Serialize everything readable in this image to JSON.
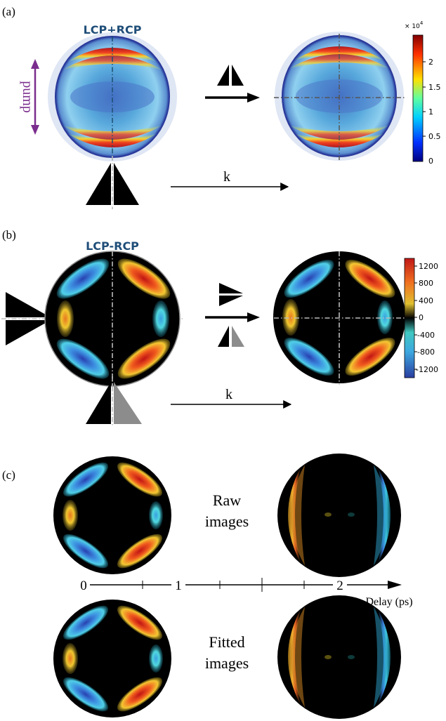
{
  "panel_a": {
    "label": "(a)",
    "title": "LCP+RCP",
    "pump_label": "pump",
    "k_label": "k",
    "colorbar": {
      "scale": "× 10",
      "scale_exp": "4",
      "ticks": [
        "2",
        "1.5",
        "1",
        "0.5",
        "0"
      ]
    }
  },
  "panel_b": {
    "label": "(b)",
    "title": "LCP-RCP",
    "k_label": "k",
    "colorbar": {
      "ticks": [
        "1200",
        "800",
        "400",
        "0",
        "-400",
        "-800",
        "-1200"
      ]
    }
  },
  "panel_c": {
    "label": "(c)",
    "raw_line1": "Raw",
    "raw_line2": "images",
    "fitted_line1": "Fitted",
    "fitted_line2": "images",
    "axis": {
      "tick_labels": [
        "0",
        "1",
        "2"
      ],
      "axis_label": "Delay (ps)"
    }
  },
  "colors": {
    "title_blue": "#1f4e79",
    "pump_purple": "#7b2d8e",
    "grey_prism": "#8c8c8c"
  }
}
